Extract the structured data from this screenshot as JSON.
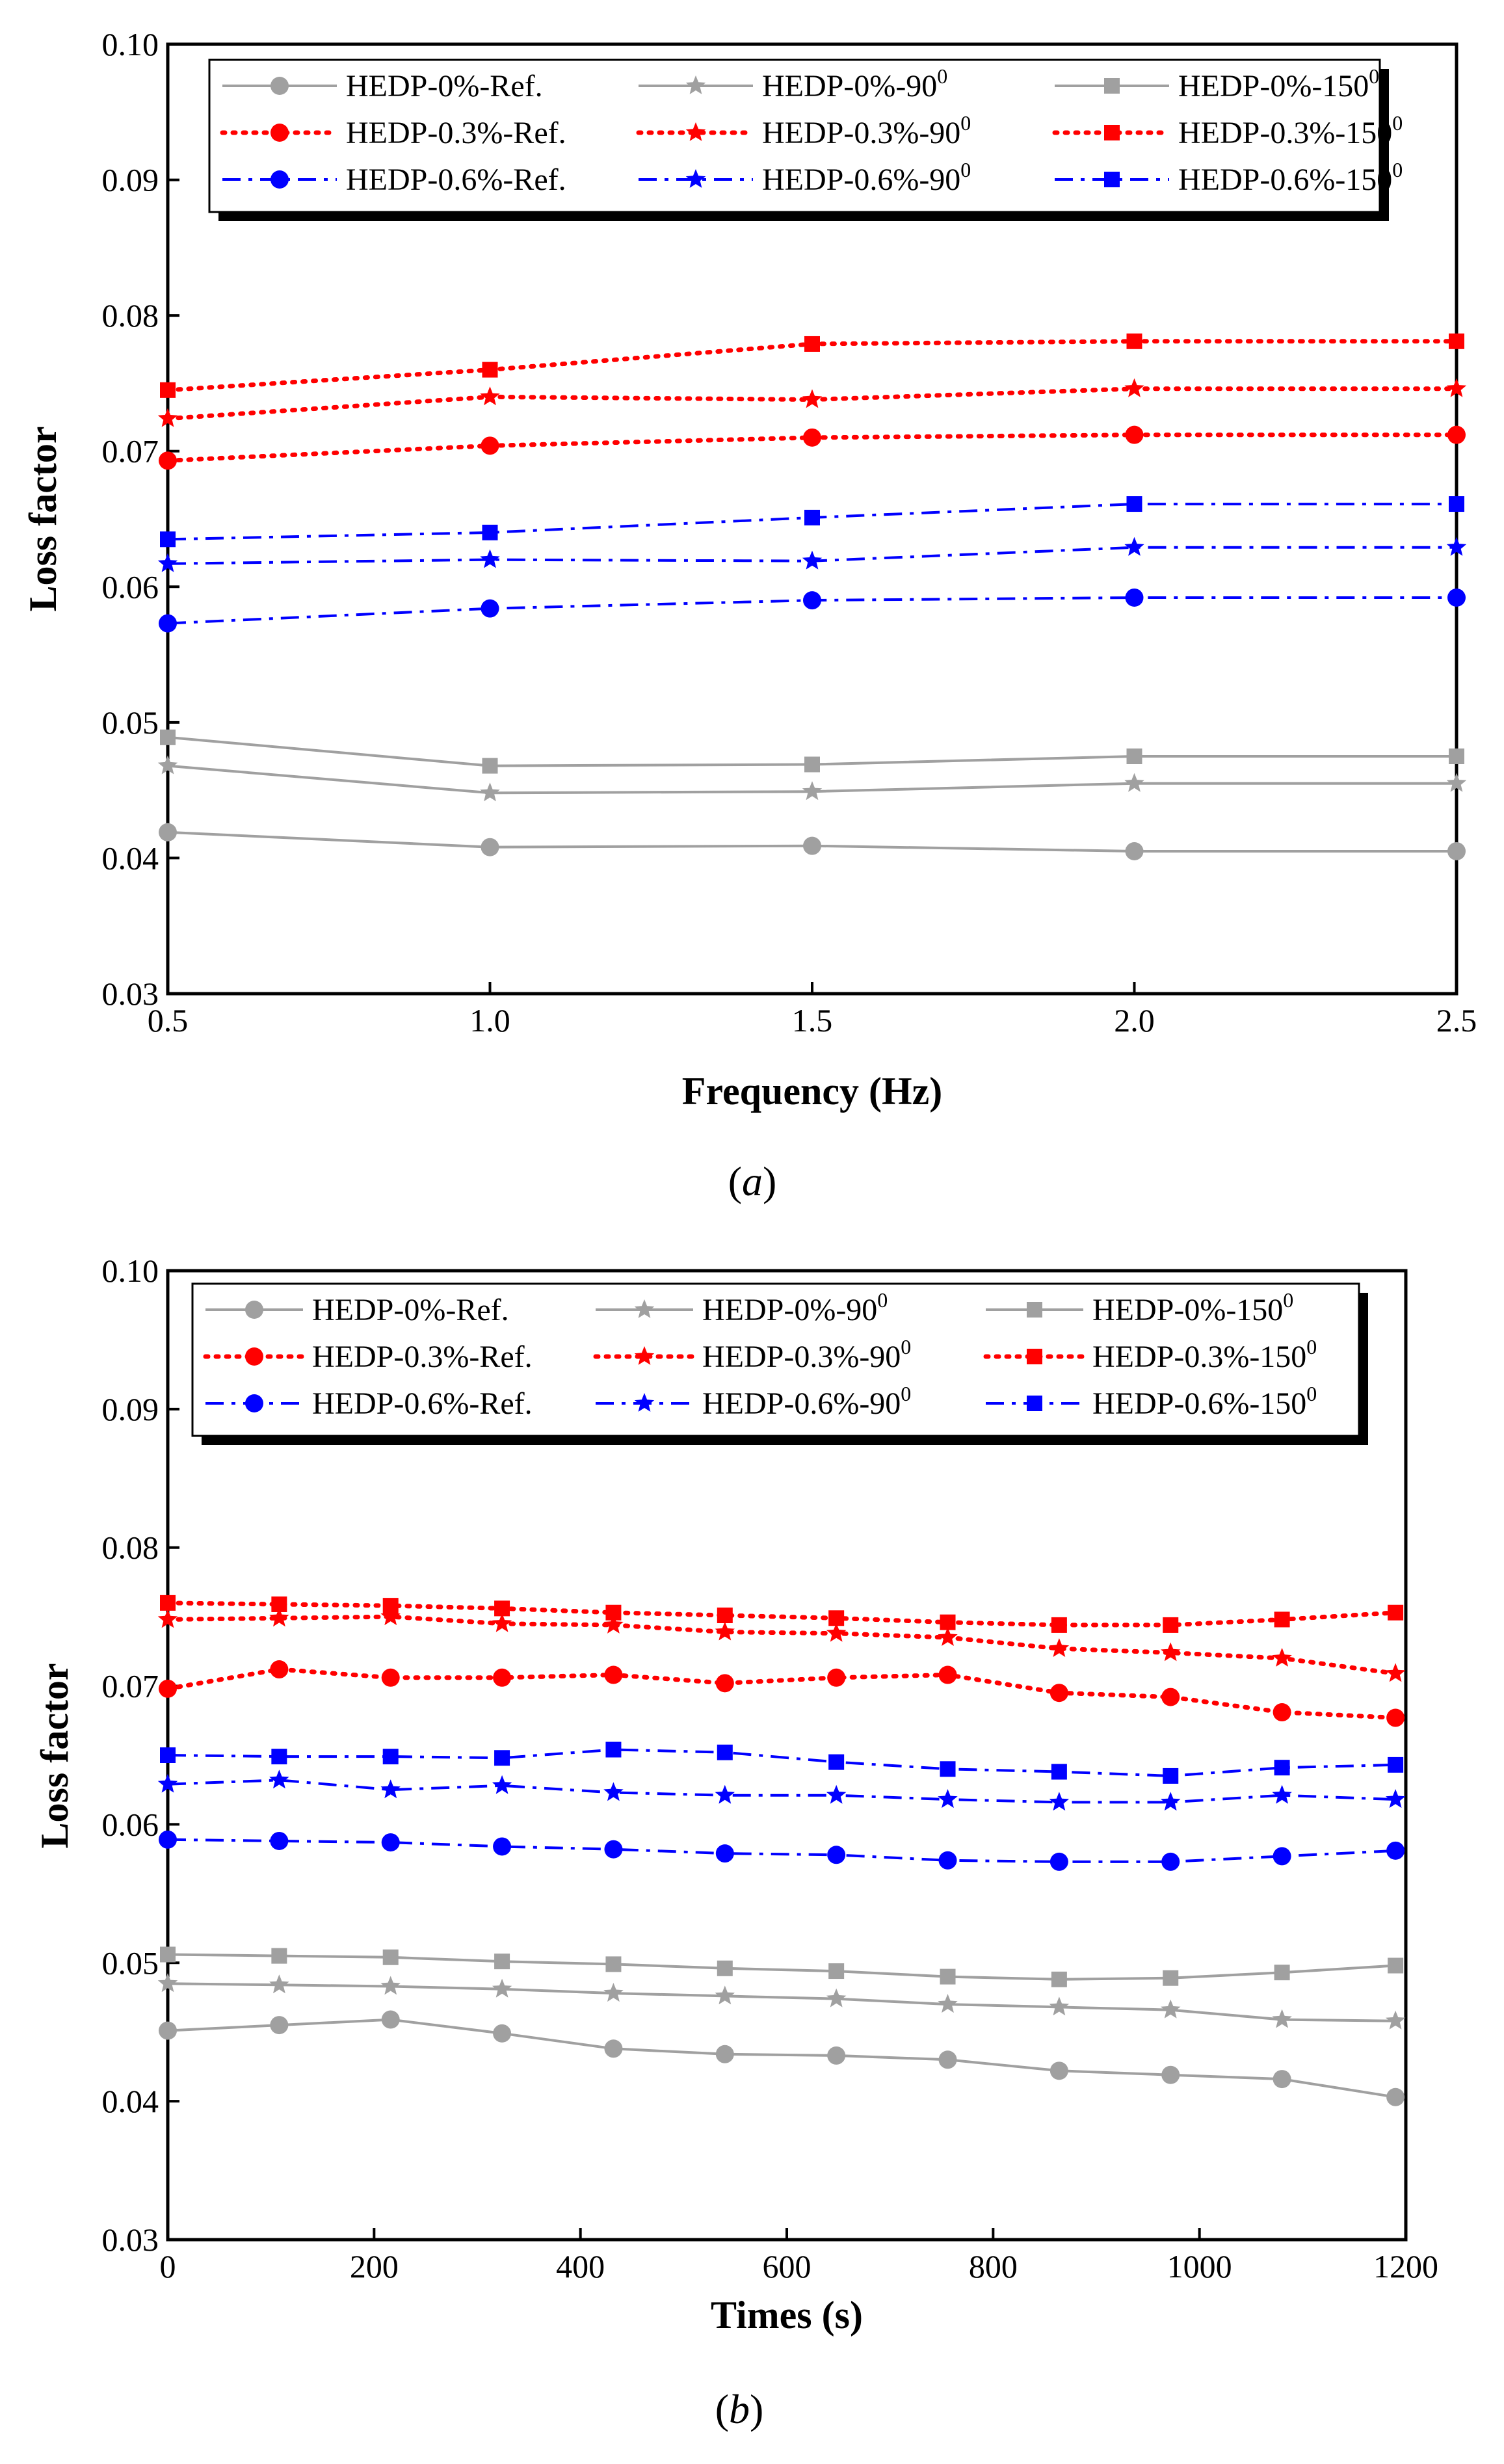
{
  "colors": {
    "gray": "#a0a0a0",
    "red": "#ff0000",
    "blue": "#0000ff",
    "axis": "#000000"
  },
  "panels": [
    {
      "label": "(a)",
      "label_letter": "a",
      "xlabel": "Frequency (Hz)",
      "ylabel": "Loss factor",
      "x_ticks": [
        "0.5",
        "1.0",
        "1.5",
        "2.0",
        "2.5"
      ],
      "y_ticks": [
        "0.03",
        "0.04",
        "0.05",
        "0.06",
        "0.07",
        "0.08",
        "0.09",
        "0.10"
      ]
    },
    {
      "label": "(b)",
      "label_letter": "b",
      "xlabel": "Times (s)",
      "ylabel": "Loss factor",
      "x_ticks": [
        "0",
        "200",
        "400",
        "600",
        "800",
        "1000",
        "1200"
      ],
      "y_ticks": [
        "0.03",
        "0.04",
        "0.05",
        "0.06",
        "0.07",
        "0.08",
        "0.09",
        "0.10"
      ]
    }
  ],
  "chart_data": [
    {
      "type": "line",
      "title": "",
      "xlabel": "Frequency (Hz)",
      "ylabel": "Loss factor",
      "xlim": [
        0.5,
        2.5
      ],
      "ylim": [
        0.03,
        0.1
      ],
      "legend_position": "top",
      "x": [
        0.5,
        1.0,
        1.5,
        2.0,
        2.5
      ],
      "series": [
        {
          "name": "HEDP-0%-Ref.",
          "color": "gray",
          "marker": "circle",
          "dash": "solid",
          "values": [
            0.0419,
            0.0408,
            0.0409,
            0.0405,
            0.0405
          ]
        },
        {
          "name": "HEDP-0%-90",
          "sup": "0",
          "color": "gray",
          "marker": "star",
          "dash": "solid",
          "values": [
            0.0468,
            0.0448,
            0.0449,
            0.0455,
            0.0455
          ]
        },
        {
          "name": "HEDP-0%-150",
          "sup": "0",
          "color": "gray",
          "marker": "square",
          "dash": "solid",
          "values": [
            0.0489,
            0.0468,
            0.0469,
            0.0475,
            0.0475
          ]
        },
        {
          "name": "HEDP-0.3%-Ref.",
          "color": "red",
          "marker": "circle",
          "dash": "dot",
          "values": [
            0.0693,
            0.0704,
            0.071,
            0.0712,
            0.0712
          ]
        },
        {
          "name": "HEDP-0.3%-90",
          "sup": "0",
          "color": "red",
          "marker": "star",
          "dash": "dot",
          "values": [
            0.0724,
            0.074,
            0.0738,
            0.0746,
            0.0746
          ]
        },
        {
          "name": "HEDP-0.3%-150",
          "sup": "0",
          "color": "red",
          "marker": "square",
          "dash": "dot",
          "values": [
            0.0745,
            0.076,
            0.0779,
            0.0781,
            0.0781
          ]
        },
        {
          "name": "HEDP-0.6%-Ref.",
          "color": "blue",
          "marker": "circle",
          "dash": "dashdot",
          "values": [
            0.0573,
            0.0584,
            0.059,
            0.0592,
            0.0592
          ]
        },
        {
          "name": "HEDP-0.6%-90",
          "sup": "0",
          "color": "blue",
          "marker": "star",
          "dash": "dashdot",
          "values": [
            0.0617,
            0.062,
            0.0619,
            0.0629,
            0.0629
          ]
        },
        {
          "name": "HEDP-0.6%-150",
          "sup": "0",
          "color": "blue",
          "marker": "square",
          "dash": "dashdot",
          "values": [
            0.0635,
            0.064,
            0.0651,
            0.0661,
            0.0661
          ]
        }
      ]
    },
    {
      "type": "line",
      "title": "",
      "xlabel": "Times (s)",
      "ylabel": "Loss factor",
      "xlim": [
        0,
        1200
      ],
      "ylim": [
        0.03,
        0.1
      ],
      "legend_position": "top",
      "x": [
        0,
        108,
        216,
        324,
        432,
        540,
        648,
        756,
        864,
        972,
        1080,
        1190
      ],
      "series": [
        {
          "name": "HEDP-0%-Ref.",
          "color": "gray",
          "marker": "circle",
          "dash": "solid",
          "values": [
            0.0451,
            0.0455,
            0.0459,
            0.0449,
            0.0438,
            0.0434,
            0.0433,
            0.043,
            0.0422,
            0.0419,
            0.0416,
            0.0403
          ]
        },
        {
          "name": "HEDP-0%-90",
          "sup": "0",
          "color": "gray",
          "marker": "star",
          "dash": "solid",
          "values": [
            0.0485,
            0.0484,
            0.0483,
            0.0481,
            0.0478,
            0.0476,
            0.0474,
            0.047,
            0.0468,
            0.0466,
            0.0459,
            0.0458
          ]
        },
        {
          "name": "HEDP-0%-150",
          "sup": "0",
          "color": "gray",
          "marker": "square",
          "dash": "solid",
          "values": [
            0.0506,
            0.0505,
            0.0504,
            0.0501,
            0.0499,
            0.0496,
            0.0494,
            0.049,
            0.0488,
            0.0489,
            0.0493,
            0.0498
          ]
        },
        {
          "name": "HEDP-0.3%-Ref.",
          "color": "red",
          "marker": "circle",
          "dash": "dot",
          "values": [
            0.0698,
            0.0712,
            0.0706,
            0.0706,
            0.0708,
            0.0702,
            0.0706,
            0.0708,
            0.0695,
            0.0692,
            0.0681,
            0.0677
          ]
        },
        {
          "name": "HEDP-0.3%-90",
          "sup": "0",
          "color": "red",
          "marker": "star",
          "dash": "dot",
          "values": [
            0.0748,
            0.0749,
            0.075,
            0.0745,
            0.0744,
            0.0739,
            0.0738,
            0.0735,
            0.0727,
            0.0724,
            0.072,
            0.0709
          ]
        },
        {
          "name": "HEDP-0.3%-150",
          "sup": "0",
          "color": "red",
          "marker": "square",
          "dash": "dot",
          "values": [
            0.076,
            0.0759,
            0.0758,
            0.0756,
            0.0753,
            0.0751,
            0.0749,
            0.0746,
            0.0744,
            0.0744,
            0.0748,
            0.0753
          ]
        },
        {
          "name": "HEDP-0.6%-Ref.",
          "color": "blue",
          "marker": "circle",
          "dash": "dashdot",
          "values": [
            0.0589,
            0.0588,
            0.0587,
            0.0584,
            0.0582,
            0.0579,
            0.0578,
            0.0574,
            0.0573,
            0.0573,
            0.0577,
            0.0581
          ]
        },
        {
          "name": "HEDP-0.6%-90",
          "sup": "0",
          "color": "blue",
          "marker": "star",
          "dash": "dashdot",
          "values": [
            0.0629,
            0.0632,
            0.0625,
            0.0628,
            0.0623,
            0.0621,
            0.0621,
            0.0618,
            0.0616,
            0.0616,
            0.0621,
            0.0618
          ]
        },
        {
          "name": "HEDP-0.6%-150",
          "sup": "0",
          "color": "blue",
          "marker": "square",
          "dash": "dashdot",
          "values": [
            0.065,
            0.0649,
            0.0649,
            0.0648,
            0.0654,
            0.0652,
            0.0645,
            0.064,
            0.0638,
            0.0635,
            0.0641,
            0.0643
          ]
        }
      ]
    }
  ]
}
